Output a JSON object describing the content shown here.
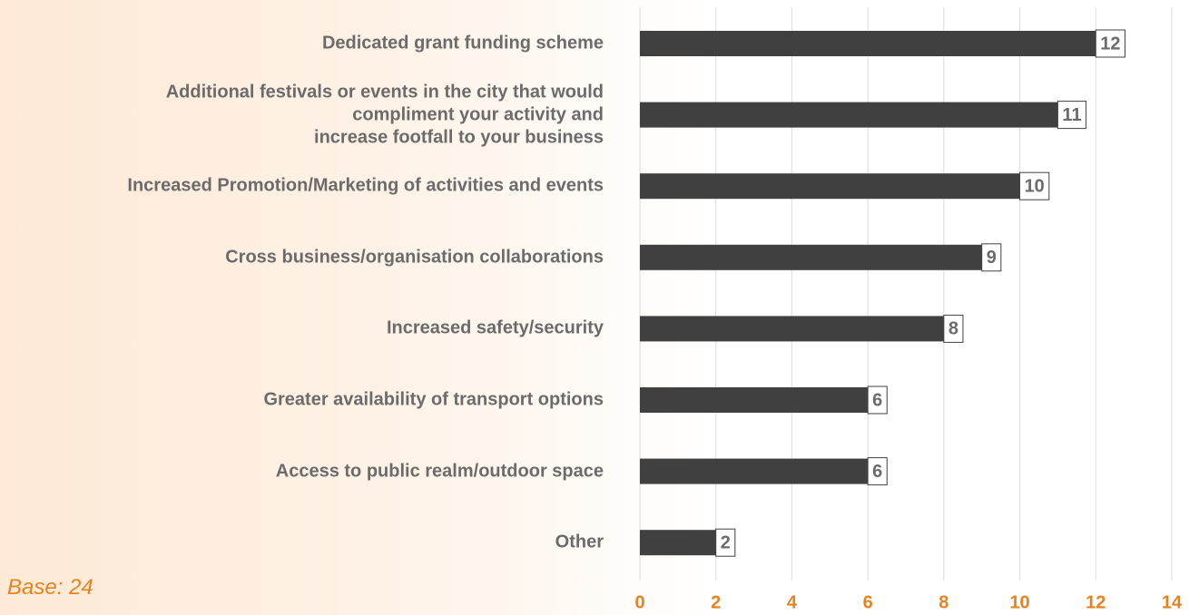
{
  "chart_data": {
    "type": "bar",
    "orientation": "horizontal",
    "categories": [
      "Dedicated grant funding scheme",
      "Additional festivals or events in the city that would\ncompliment your activity and\nincrease footfall to your business",
      "Increased Promotion/Marketing of activities and events",
      "Cross business/organisation collaborations",
      "Increased safety/security",
      "Greater availability of transport options",
      "Access to public realm/outdoor space",
      "Other"
    ],
    "values": [
      12,
      11,
      10,
      9,
      8,
      6,
      6,
      2
    ],
    "color": "#404040",
    "xlim": [
      0,
      14
    ],
    "xticks": [
      0,
      2,
      4,
      6,
      8,
      10,
      12,
      14
    ],
    "grid": true,
    "note": "Base: 24"
  }
}
